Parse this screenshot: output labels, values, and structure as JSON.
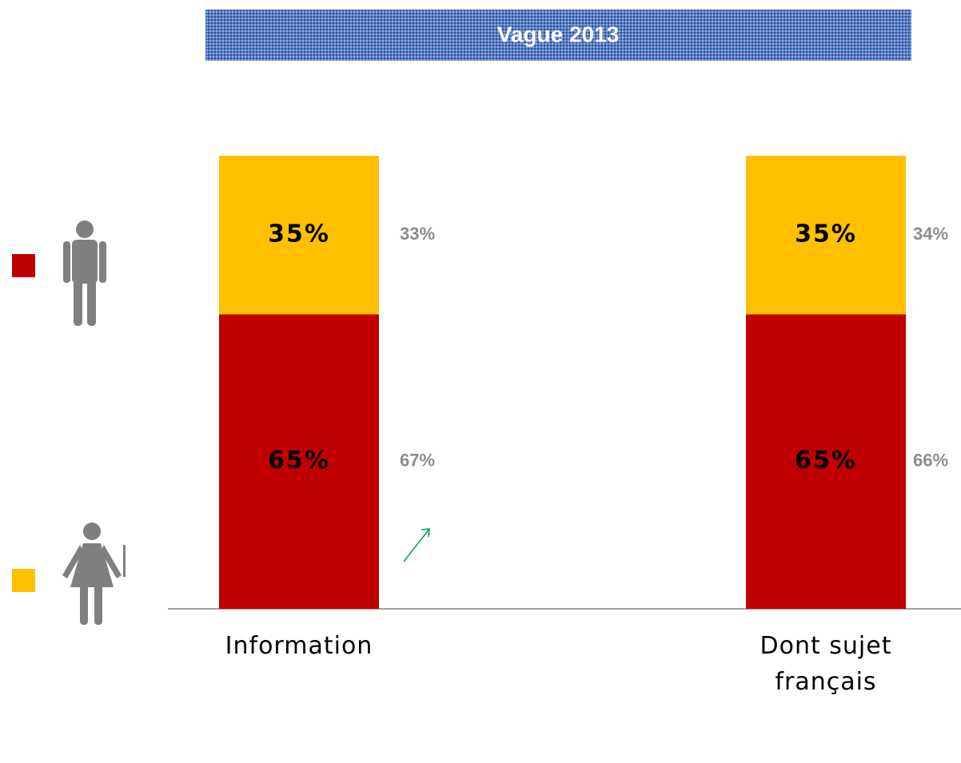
{
  "chart_data": {
    "type": "bar",
    "stacked": true,
    "title": "Vague 2013",
    "categories": [
      "Information",
      "Dont sujet français"
    ],
    "series": [
      {
        "color": "#c00000",
        "values": [
          65,
          65
        ],
        "value_labels": [
          "65%",
          "65%"
        ],
        "previous_values": [
          67,
          66
        ],
        "previous_value_labels": [
          "67%",
          "66%"
        ]
      },
      {
        "color": "#ffc000",
        "values": [
          35,
          35
        ],
        "value_labels": [
          "35%",
          "35%"
        ],
        "previous_values": [
          33,
          34
        ],
        "previous_value_labels": [
          "33%",
          "34%"
        ]
      }
    ]
  }
}
